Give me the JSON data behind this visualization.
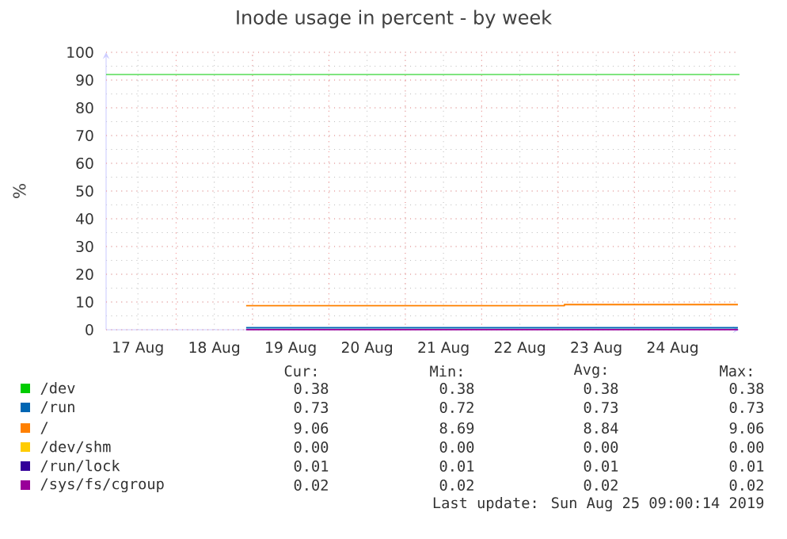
{
  "chart_data": {
    "type": "step",
    "title": "Inode usage in percent - by week",
    "ylabel": "%",
    "xlim": [
      "2019-08-17T02:00",
      "2019-08-25T09:00"
    ],
    "ylim": [
      0,
      100
    ],
    "xticks": [
      {
        "value": "2019-08-17T12:00",
        "label": "17 Aug"
      },
      {
        "value": "2019-08-18T12:00",
        "label": "18 Aug"
      },
      {
        "value": "2019-08-19T12:00",
        "label": "19 Aug"
      },
      {
        "value": "2019-08-20T12:00",
        "label": "20 Aug"
      },
      {
        "value": "2019-08-21T12:00",
        "label": "21 Aug"
      },
      {
        "value": "2019-08-22T12:00",
        "label": "22 Aug"
      },
      {
        "value": "2019-08-23T12:00",
        "label": "23 Aug"
      },
      {
        "value": "2019-08-24T12:00",
        "label": "24 Aug"
      }
    ],
    "yticks": [
      0,
      10,
      20,
      30,
      40,
      50,
      60,
      70,
      80,
      90,
      100
    ],
    "grid": true,
    "legend": "bottom",
    "ref_lines": [
      {
        "axis": "y",
        "value": 92,
        "color": "#00cc00"
      }
    ],
    "series": [
      {
        "name": "/dev",
        "color": "#00cc00",
        "values": [
          null,
          null
        ]
      },
      {
        "name": "/run",
        "color": "#0066b3",
        "x": [
          "2019-08-18T22:00",
          "2019-08-25T08:30"
        ],
        "values": [
          0.73,
          0.73
        ]
      },
      {
        "name": "/",
        "color": "#ff8000",
        "x": [
          "2019-08-18T22:00",
          "2019-08-23T02:00",
          "2019-08-25T08:30"
        ],
        "values": [
          8.69,
          9.06,
          9.06
        ]
      },
      {
        "name": "/dev/shm",
        "color": "#ffcc00",
        "values": [
          null,
          null
        ]
      },
      {
        "name": "/run/lock",
        "color": "#330099",
        "values": [
          null,
          null
        ]
      },
      {
        "name": "/sys/fs/cgroup",
        "color": "#990099",
        "x": [
          "2019-08-18T22:00",
          "2019-08-25T08:30"
        ],
        "values": [
          0.02,
          0.02
        ]
      }
    ],
    "annotations": [
      "Cur:",
      "Min:",
      "Avg:",
      "Max:",
      "0.38",
      "0.38",
      "0.38",
      "0.38",
      "0.73",
      "0.72",
      "0.73",
      "0.73",
      "9.06",
      "8.69",
      "8.84",
      "9.06",
      "0.00",
      "0.00",
      "0.00",
      "0.00",
      "0.01",
      "0.01",
      "0.01",
      "0.01",
      "0.02",
      "0.02",
      "0.02",
      "0.02",
      "Last update: Sun Aug 25 09:00:14 2019"
    ]
  }
}
